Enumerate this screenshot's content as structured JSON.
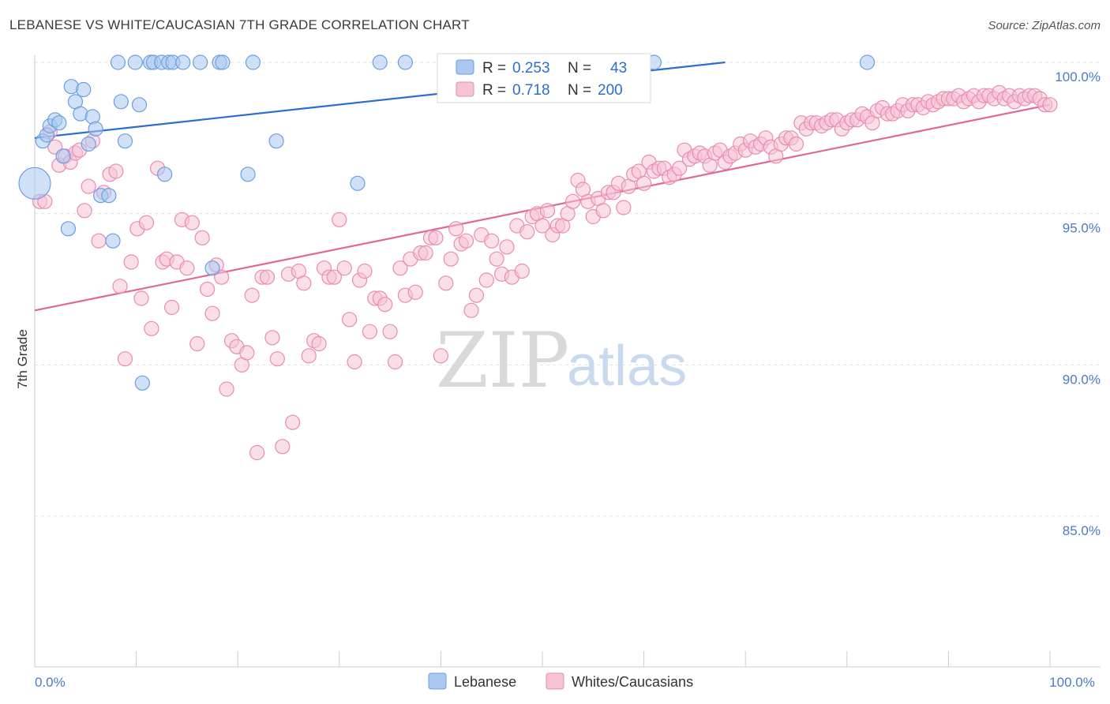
{
  "title": "LEBANESE VS WHITE/CAUCASIAN 7TH GRADE CORRELATION CHART",
  "source": "Source: ZipAtlas.com",
  "chart_data": {
    "type": "scatter",
    "ylabel": "7th Grade",
    "xlim": [
      0,
      100
    ],
    "ylim": [
      80.5,
      100.5
    ],
    "x_tick_labels": [
      {
        "x": 0,
        "label": "0.0%"
      },
      {
        "x": 100,
        "label": "100.0%"
      }
    ],
    "y_ticks": [
      {
        "y": 100,
        "label": "100.0%"
      },
      {
        "y": 95,
        "label": "95.0%"
      },
      {
        "y": 90,
        "label": "90.0%"
      },
      {
        "y": 85,
        "label": "85.0%"
      }
    ],
    "x_minor_ticks": [
      0,
      10,
      20,
      30,
      40,
      50,
      60,
      70,
      80,
      90,
      100
    ],
    "legend": [
      {
        "name": "Lebanese",
        "r_label": "R =",
        "r_value": "0.253",
        "n_label": "N =",
        "n_value": "43"
      },
      {
        "name": "Whites/Caucasians",
        "r_label": "R =",
        "r_value": "0.718",
        "n_label": "N =",
        "n_value": "200"
      }
    ],
    "watermark": {
      "zip": "ZIP",
      "atlas": "atlas"
    },
    "series": [
      {
        "name": "Lebanese",
        "color": "#6b9ee0",
        "fill": "#aac8f0",
        "line_color": "#2a6fd0",
        "trend": {
          "x0": 0,
          "y0": 97.5,
          "x1": 68,
          "y1": 100.0
        },
        "points": [
          [
            0,
            96.0,
            "big"
          ],
          [
            0.8,
            97.4
          ],
          [
            1.2,
            97.6
          ],
          [
            1.5,
            97.9
          ],
          [
            2.0,
            98.1
          ],
          [
            2.4,
            98.0
          ],
          [
            2.8,
            96.9
          ],
          [
            3.3,
            94.5
          ],
          [
            3.6,
            99.2
          ],
          [
            4.0,
            98.7
          ],
          [
            4.5,
            98.3
          ],
          [
            4.8,
            99.1
          ],
          [
            5.3,
            97.3
          ],
          [
            5.7,
            98.2
          ],
          [
            6.0,
            97.8
          ],
          [
            6.5,
            95.6
          ],
          [
            7.3,
            95.6
          ],
          [
            7.7,
            94.1
          ],
          [
            8.2,
            100.0
          ],
          [
            8.5,
            98.7
          ],
          [
            8.9,
            97.4
          ],
          [
            9.9,
            100.0
          ],
          [
            10.3,
            98.6
          ],
          [
            10.6,
            89.4
          ],
          [
            11.4,
            100.0
          ],
          [
            11.7,
            100.0
          ],
          [
            12.5,
            100.0
          ],
          [
            12.8,
            96.3
          ],
          [
            13.2,
            100.0
          ],
          [
            13.6,
            100.0
          ],
          [
            14.6,
            100.0
          ],
          [
            16.3,
            100.0
          ],
          [
            17.5,
            93.2
          ],
          [
            18.2,
            100.0
          ],
          [
            18.5,
            100.0
          ],
          [
            21.0,
            96.3
          ],
          [
            21.5,
            100.0
          ],
          [
            23.8,
            97.4
          ],
          [
            31.8,
            96.0
          ],
          [
            34.0,
            100.0
          ],
          [
            36.5,
            100.0
          ],
          [
            61.0,
            100.0
          ],
          [
            82.0,
            100.0
          ]
        ]
      },
      {
        "name": "Whites/Caucasians",
        "color": "#e98cb0",
        "fill": "#f6c3d5",
        "line_color": "#e0679a",
        "trend": {
          "x0": 0,
          "y0": 91.8,
          "x1": 100,
          "y1": 98.6
        },
        "points": [
          [
            0.5,
            95.4
          ],
          [
            1.0,
            95.4
          ],
          [
            1.5,
            97.7
          ],
          [
            2.0,
            97.2
          ],
          [
            2.4,
            96.6
          ],
          [
            3.0,
            96.9
          ],
          [
            3.5,
            96.7
          ],
          [
            4.0,
            97.0
          ],
          [
            4.4,
            97.1
          ],
          [
            4.9,
            95.1
          ],
          [
            5.3,
            95.9
          ],
          [
            5.7,
            97.4
          ],
          [
            6.3,
            94.1
          ],
          [
            6.8,
            95.7
          ],
          [
            7.4,
            96.3
          ],
          [
            8.0,
            96.4
          ],
          [
            8.4,
            92.6
          ],
          [
            8.9,
            90.2
          ],
          [
            9.5,
            93.4
          ],
          [
            10.1,
            94.5
          ],
          [
            10.5,
            92.2
          ],
          [
            11.0,
            94.7
          ],
          [
            11.5,
            91.2
          ],
          [
            12.1,
            96.5
          ],
          [
            12.6,
            93.4
          ],
          [
            13.0,
            93.5
          ],
          [
            13.5,
            91.9
          ],
          [
            14.0,
            93.4
          ],
          [
            14.5,
            94.8
          ],
          [
            15.0,
            93.2
          ],
          [
            15.5,
            94.7
          ],
          [
            16.0,
            90.7
          ],
          [
            16.5,
            94.2
          ],
          [
            17.0,
            92.5
          ],
          [
            17.5,
            91.7
          ],
          [
            17.9,
            93.3
          ],
          [
            18.4,
            92.9
          ],
          [
            18.9,
            89.2
          ],
          [
            19.4,
            90.8
          ],
          [
            19.9,
            90.6
          ],
          [
            20.4,
            90.0
          ],
          [
            20.9,
            90.4
          ],
          [
            21.4,
            92.3
          ],
          [
            21.9,
            87.1
          ],
          [
            22.4,
            92.9
          ],
          [
            22.9,
            92.9
          ],
          [
            23.4,
            90.9
          ],
          [
            23.9,
            90.2
          ],
          [
            24.4,
            87.3
          ],
          [
            25.0,
            93.0
          ],
          [
            25.4,
            88.1
          ],
          [
            26.0,
            93.1
          ],
          [
            26.5,
            92.7
          ],
          [
            27.0,
            90.3
          ],
          [
            27.5,
            90.8
          ],
          [
            28.0,
            90.7
          ],
          [
            28.5,
            93.2
          ],
          [
            29.0,
            92.9
          ],
          [
            29.5,
            92.9
          ],
          [
            30.0,
            94.8
          ],
          [
            30.5,
            93.2
          ],
          [
            31.0,
            91.5
          ],
          [
            31.5,
            90.1
          ],
          [
            32.0,
            92.8
          ],
          [
            32.5,
            93.1
          ],
          [
            33.0,
            91.1
          ],
          [
            33.5,
            92.2
          ],
          [
            34.0,
            92.2
          ],
          [
            34.5,
            92.0
          ],
          [
            35.0,
            91.1
          ],
          [
            35.5,
            90.1
          ],
          [
            36.0,
            93.2
          ],
          [
            36.5,
            92.3
          ],
          [
            37.0,
            93.5
          ],
          [
            37.5,
            92.4
          ],
          [
            38.0,
            93.7
          ],
          [
            38.5,
            93.7
          ],
          [
            39.0,
            94.2
          ],
          [
            39.5,
            94.2
          ],
          [
            40.0,
            90.3
          ],
          [
            40.5,
            92.7
          ],
          [
            41.0,
            93.5
          ],
          [
            41.5,
            94.5
          ],
          [
            42.0,
            94.0
          ],
          [
            42.5,
            94.1
          ],
          [
            43.0,
            91.8
          ],
          [
            43.5,
            92.3
          ],
          [
            44.0,
            94.3
          ],
          [
            44.5,
            92.8
          ],
          [
            45.0,
            94.1
          ],
          [
            45.5,
            93.5
          ],
          [
            46.0,
            93.0
          ],
          [
            46.5,
            93.9
          ],
          [
            47.0,
            92.9
          ],
          [
            47.5,
            94.6
          ],
          [
            48.0,
            93.1
          ],
          [
            48.5,
            94.4
          ],
          [
            49.0,
            94.9
          ],
          [
            49.5,
            95.0
          ],
          [
            50.0,
            94.6
          ],
          [
            50.5,
            95.1
          ],
          [
            51.0,
            94.3
          ],
          [
            51.5,
            94.6
          ],
          [
            52.0,
            94.6
          ],
          [
            52.5,
            95.0
          ],
          [
            53.0,
            95.4
          ],
          [
            53.5,
            96.1
          ],
          [
            54.0,
            95.8
          ],
          [
            54.5,
            95.4
          ],
          [
            55.0,
            94.9
          ],
          [
            55.5,
            95.5
          ],
          [
            56.0,
            95.1
          ],
          [
            56.5,
            95.7
          ],
          [
            57.0,
            95.7
          ],
          [
            57.5,
            96.0
          ],
          [
            58.0,
            95.2
          ],
          [
            58.5,
            95.9
          ],
          [
            59.0,
            96.3
          ],
          [
            59.5,
            96.4
          ],
          [
            60.0,
            96.0
          ],
          [
            60.5,
            96.7
          ],
          [
            61.0,
            96.4
          ],
          [
            61.5,
            96.5
          ],
          [
            62.0,
            96.5
          ],
          [
            62.5,
            96.2
          ],
          [
            63.0,
            96.3
          ],
          [
            63.5,
            96.5
          ],
          [
            64.0,
            97.1
          ],
          [
            64.5,
            96.8
          ],
          [
            65.0,
            96.9
          ],
          [
            65.5,
            97.0
          ],
          [
            66.0,
            96.9
          ],
          [
            66.5,
            96.6
          ],
          [
            67.0,
            97.0
          ],
          [
            67.5,
            97.1
          ],
          [
            68.0,
            96.7
          ],
          [
            68.5,
            96.9
          ],
          [
            69.0,
            97.0
          ],
          [
            69.5,
            97.3
          ],
          [
            70.0,
            97.1
          ],
          [
            70.5,
            97.4
          ],
          [
            71.0,
            97.2
          ],
          [
            71.5,
            97.3
          ],
          [
            72.0,
            97.5
          ],
          [
            72.5,
            97.2
          ],
          [
            73.0,
            96.9
          ],
          [
            73.5,
            97.3
          ],
          [
            74.0,
            97.5
          ],
          [
            74.5,
            97.5
          ],
          [
            75.0,
            97.3
          ],
          [
            75.5,
            98.0
          ],
          [
            76.0,
            97.8
          ],
          [
            76.5,
            98.0
          ],
          [
            77.0,
            98.0
          ],
          [
            77.5,
            97.9
          ],
          [
            78.0,
            98.0
          ],
          [
            78.5,
            98.1
          ],
          [
            79.0,
            98.1
          ],
          [
            79.5,
            97.8
          ],
          [
            80.0,
            98.0
          ],
          [
            80.5,
            98.1
          ],
          [
            81.0,
            98.1
          ],
          [
            81.5,
            98.3
          ],
          [
            82.0,
            98.2
          ],
          [
            82.5,
            98.0
          ],
          [
            83.0,
            98.4
          ],
          [
            83.5,
            98.5
          ],
          [
            84.0,
            98.3
          ],
          [
            84.5,
            98.3
          ],
          [
            85.0,
            98.4
          ],
          [
            85.5,
            98.6
          ],
          [
            86.0,
            98.4
          ],
          [
            86.5,
            98.6
          ],
          [
            87.0,
            98.6
          ],
          [
            87.5,
            98.5
          ],
          [
            88.0,
            98.7
          ],
          [
            88.5,
            98.6
          ],
          [
            89.0,
            98.7
          ],
          [
            89.5,
            98.8
          ],
          [
            90.0,
            98.8
          ],
          [
            90.5,
            98.8
          ],
          [
            91.0,
            98.9
          ],
          [
            91.5,
            98.7
          ],
          [
            92.0,
            98.8
          ],
          [
            92.5,
            98.9
          ],
          [
            93.0,
            98.7
          ],
          [
            93.5,
            98.9
          ],
          [
            94.0,
            98.9
          ],
          [
            94.5,
            98.8
          ],
          [
            95.0,
            99.0
          ],
          [
            95.5,
            98.8
          ],
          [
            96.0,
            98.9
          ],
          [
            96.5,
            98.7
          ],
          [
            97.0,
            98.9
          ],
          [
            97.5,
            98.8
          ],
          [
            98.0,
            98.9
          ],
          [
            98.5,
            98.9
          ],
          [
            99.0,
            98.8
          ],
          [
            99.5,
            98.6
          ],
          [
            100.0,
            98.6
          ]
        ]
      }
    ]
  }
}
